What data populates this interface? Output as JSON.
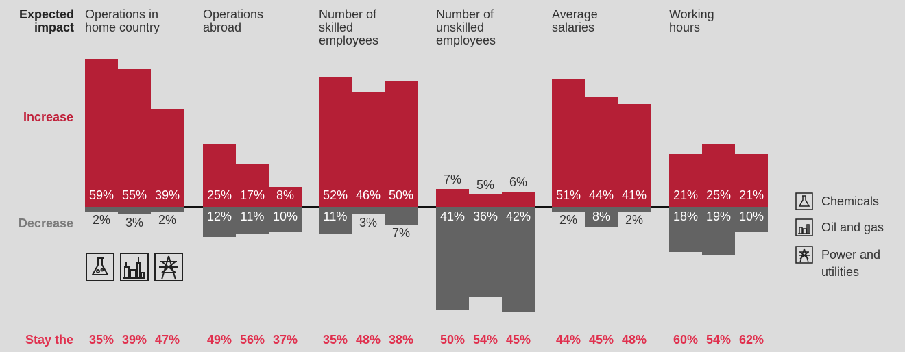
{
  "chart_data": {
    "type": "bar",
    "header": "Expected\nimpact",
    "increase_label": "Increase",
    "decrease_label": "Decrease",
    "stay_label": "Stay the",
    "categories": [
      "Operations in\nhome country",
      "Operations\nabroad",
      "Number of\nskilled\nemployees",
      "Number of\nunskilled\nemployees",
      "Average\nsalaries",
      "Working\nhours"
    ],
    "increase_color": "#b51f36",
    "decrease_color": "#636363",
    "series": [
      {
        "name": "Chemicals",
        "increase": [
          59,
          25,
          52,
          7,
          51,
          21
        ],
        "increase_labels": [
          "59%",
          "25%",
          "52%",
          "7%",
          "51%",
          "21%"
        ],
        "decrease": [
          2,
          12,
          11,
          41,
          2,
          18
        ],
        "decrease_labels": [
          "2%",
          "12%",
          "11%",
          "41%",
          "2%",
          "18%"
        ],
        "stay": [
          35,
          49,
          35,
          50,
          44,
          60
        ],
        "stay_labels": [
          "35%",
          "49%",
          "35%",
          "50%",
          "44%",
          "60%"
        ]
      },
      {
        "name": "Oil and gas",
        "increase": [
          55,
          17,
          46,
          5,
          44,
          25
        ],
        "increase_labels": [
          "55%",
          "17%",
          "46%",
          "5%",
          "44%",
          "25%"
        ],
        "decrease": [
          3,
          11,
          3,
          36,
          8,
          19
        ],
        "decrease_labels": [
          "3%",
          "11%",
          "3%",
          "36%",
          "8%",
          "19%"
        ],
        "stay": [
          39,
          56,
          48,
          54,
          45,
          54
        ],
        "stay_labels": [
          "39%",
          "56%",
          "48%",
          "54%",
          "45%",
          "54%"
        ]
      },
      {
        "name": "Power and\nutilities",
        "increase": [
          39,
          8,
          50,
          6,
          41,
          21
        ],
        "increase_labels": [
          "39%",
          "8%",
          "50%",
          "6%",
          "41%",
          "21%"
        ],
        "decrease": [
          2,
          10,
          7,
          42,
          2,
          10
        ],
        "decrease_labels": [
          "2%",
          "10%",
          "7%",
          "42%",
          "2%",
          "10%"
        ],
        "stay": [
          47,
          37,
          38,
          45,
          48,
          62
        ],
        "stay_labels": [
          "47%",
          "37%",
          "38%",
          "45%",
          "48%",
          "62%"
        ]
      }
    ]
  }
}
